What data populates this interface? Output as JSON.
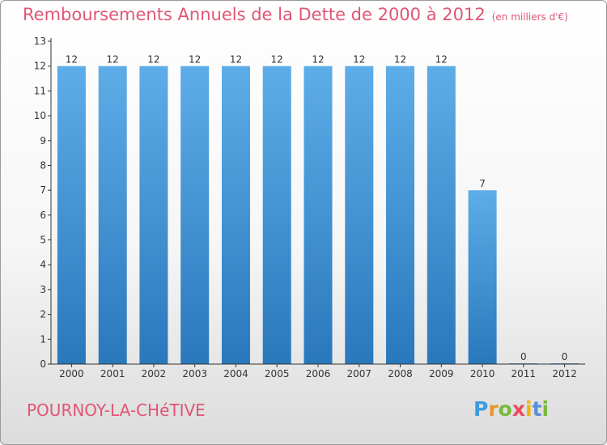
{
  "header": {
    "title": "Remboursements Annuels de la Dette de 2000 à 2012",
    "unit": "(en milliers d'€)"
  },
  "footer": {
    "commune": "POURNOY-LA-CHéTIVE"
  },
  "logo": {
    "letters": [
      "P",
      "r",
      "o",
      "x",
      "i",
      "t",
      "i"
    ],
    "colors": [
      "#3a9be0",
      "#e8962b",
      "#78b83a",
      "#e84a5f",
      "#f0b400",
      "#5a8fd6",
      "#78b83a"
    ]
  },
  "chart_data": {
    "type": "bar",
    "categories": [
      "2000",
      "2001",
      "2002",
      "2003",
      "2004",
      "2005",
      "2006",
      "2007",
      "2008",
      "2009",
      "2010",
      "2011",
      "2012"
    ],
    "values": [
      12,
      12,
      12,
      12,
      12,
      12,
      12,
      12,
      12,
      12,
      7,
      0,
      0
    ],
    "data_labels": [
      "12",
      "12",
      "12",
      "12",
      "12",
      "12",
      "12",
      "12",
      "12",
      "12",
      "7",
      "0",
      "0"
    ],
    "yticks": [
      0,
      1,
      2,
      3,
      4,
      5,
      6,
      7,
      8,
      9,
      10,
      11,
      12,
      13
    ],
    "ylim": [
      0,
      13
    ],
    "xlabel": "",
    "ylabel": "",
    "grid": false,
    "bar_color_light": "#5dade8",
    "bar_color_dark": "#2a78bc",
    "axis_color": "#333333"
  }
}
